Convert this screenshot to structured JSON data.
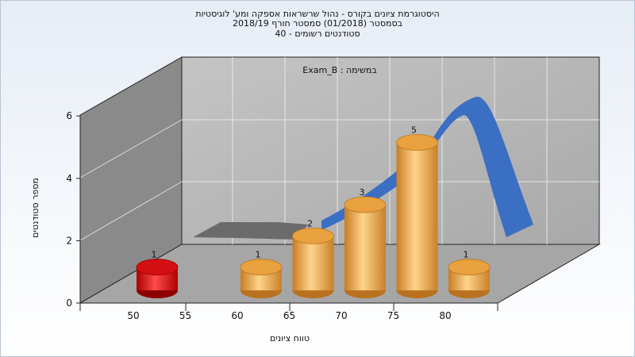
{
  "chart_data": {
    "type": "bar",
    "title": [
      "היסטוגרמת ציונים בקורס - נהול שרשראות אספקה ומע' לוגיסטיות",
      "בסמסטר  (01/2018)  סמסטר חורף 2018/19",
      "סטודנטים רשומים - 40"
    ],
    "annotation": "Exam_B : במשימה",
    "xlabel": "טווח ציונים",
    "ylabel": "מספר סטודנטים",
    "x_ticks": [
      "50",
      "55",
      "60",
      "65",
      "70",
      "75",
      "80"
    ],
    "y_ticks": [
      "0",
      "2",
      "4",
      "6"
    ],
    "ylim": [
      0,
      6
    ],
    "bars": [
      {
        "x": 50,
        "value": 1,
        "label": "1",
        "color": "#e8151b"
      },
      {
        "x": 60,
        "value": 1,
        "label": "1",
        "color": "#f0a846"
      },
      {
        "x": 65,
        "value": 2,
        "label": "2",
        "color": "#f0a846"
      },
      {
        "x": 70,
        "value": 3,
        "label": "3",
        "color": "#f0a846"
      },
      {
        "x": 75,
        "value": 5,
        "label": "5",
        "color": "#f0a846"
      },
      {
        "x": 80,
        "value": 1,
        "label": "1",
        "color": "#f0a846"
      }
    ],
    "trend_color": "#3a6fc4",
    "grid": true
  }
}
